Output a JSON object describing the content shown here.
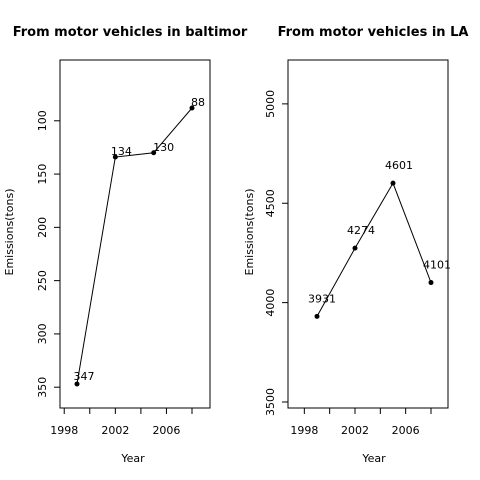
{
  "chart_data": [
    {
      "type": "line",
      "title": "From motor vehicles in baltimor",
      "xlabel": "Year",
      "ylabel": "Emissions(tons)",
      "x": [
        1999,
        2002,
        2005,
        2008
      ],
      "values": [
        347,
        134,
        130,
        88
      ],
      "data_labels": [
        "347",
        "134",
        "130",
        "88"
      ],
      "xlim": [
        1999,
        2008
      ],
      "ylim": [
        88,
        347
      ],
      "xticks": [
        1998,
        2002,
        2006
      ],
      "yticks": [
        100,
        150,
        200,
        250,
        300,
        350
      ],
      "grid": false,
      "legend": "none"
    },
    {
      "type": "line",
      "title": "From motor vehicles in LA",
      "xlabel": "Year",
      "ylabel": "Emissions(tons)",
      "x": [
        1999,
        2002,
        2005,
        2008
      ],
      "values": [
        3931,
        4274,
        4601,
        4101
      ],
      "data_labels": [
        "3931",
        "4274",
        "4601",
        "4101"
      ],
      "xlim": [
        1999,
        2008
      ],
      "ylim": [
        3500,
        5100
      ],
      "xticks": [
        1998,
        2002,
        2006
      ],
      "yticks": [
        3500,
        4000,
        4500,
        5000
      ],
      "grid": false,
      "legend": "none"
    }
  ]
}
